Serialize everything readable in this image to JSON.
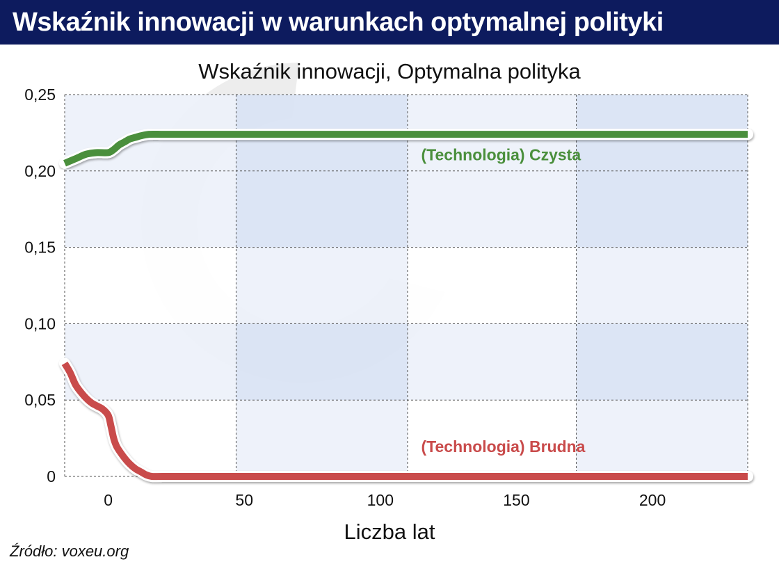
{
  "header": {
    "title": "Wskaźnik innowacji w warunkach optymalnej polityki"
  },
  "footer": {
    "source": "Źródło: voxeu.org"
  },
  "chart_data": {
    "type": "line",
    "title": "Wskaźnik innowacji, Optymalna polityka",
    "xlabel": "Liczba lat",
    "ylabel": "",
    "xlim": [
      -16,
      235
    ],
    "ylim": [
      0,
      0.25
    ],
    "xticks": [
      0,
      50,
      100,
      150,
      200
    ],
    "xtick_labels": [
      "0",
      "50",
      "100",
      "150",
      "200"
    ],
    "yticks": [
      0,
      0.05,
      0.1,
      0.15,
      0.2,
      0.25
    ],
    "ytick_labels": [
      "0",
      "0,05",
      "0,10",
      "0,15",
      "0,20",
      "0,25"
    ],
    "grid": true,
    "series": [
      {
        "name": "(Technologia) Czysta",
        "color": "#4a8f3c",
        "x": [
          -16,
          -12,
          -8,
          -4,
          0,
          2,
          4,
          6,
          8,
          10,
          12,
          15,
          20,
          25,
          30,
          50,
          100,
          150,
          200,
          235
        ],
        "y": [
          0.205,
          0.208,
          0.211,
          0.212,
          0.212,
          0.214,
          0.217,
          0.219,
          0.221,
          0.222,
          0.223,
          0.224,
          0.224,
          0.224,
          0.224,
          0.224,
          0.224,
          0.224,
          0.224,
          0.224
        ]
      },
      {
        "name": "(Technologia) Brudna",
        "color": "#c94b4b",
        "x": [
          -16,
          -14,
          -12,
          -10,
          -8,
          -6,
          -4,
          -2,
          0,
          1,
          2,
          3,
          4,
          6,
          8,
          10,
          12,
          14,
          16,
          20,
          30,
          50,
          100,
          150,
          200,
          235
        ],
        "y": [
          0.074,
          0.068,
          0.06,
          0.055,
          0.051,
          0.048,
          0.046,
          0.044,
          0.04,
          0.033,
          0.025,
          0.02,
          0.017,
          0.012,
          0.008,
          0.005,
          0.003,
          0.001,
          0.0,
          0.0,
          0.0,
          0.0,
          0.0,
          0.0,
          0.0,
          0.0
        ]
      }
    ],
    "annotations": [
      {
        "text": "(Technologia) Czysta",
        "series": 0,
        "x": 115,
        "y": 0.207
      },
      {
        "text": "(Technologia) Brudna",
        "series": 1,
        "x": 115,
        "y": 0.016
      }
    ],
    "band_colors": {
      "dark": "#d9e3f4",
      "light": "#edf1fa",
      "white": "#ffffff"
    },
    "watermark_color": "#e8e8e8"
  }
}
